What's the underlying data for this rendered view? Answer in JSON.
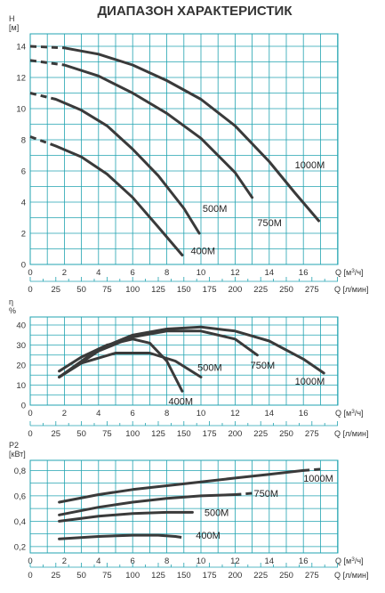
{
  "title": "ДИАПАЗОН ХАРАКТЕРИСТИК",
  "colors": {
    "grid": "#22a3b0",
    "curve": "#3a3a3a",
    "text": "#333333"
  },
  "chart_data": [
    {
      "type": "line",
      "ylabel": "H [м]",
      "xlabel_m3h": "Q [м³/ч]",
      "xlabel_lmin": "Q [л/мин]",
      "xlim": [
        0,
        18
      ],
      "ylim": [
        0,
        14.8
      ],
      "xticks": [
        "0",
        "2",
        "4",
        "6",
        "8",
        "10",
        "12",
        "14",
        "16"
      ],
      "yticks": [
        "0",
        "2",
        "4",
        "6",
        "8",
        "10",
        "12",
        "14"
      ],
      "xticks_lmin": [
        "0",
        "25",
        "50",
        "75",
        "100",
        "125",
        "150",
        "175",
        "200",
        "225",
        "250",
        "275"
      ],
      "series": [
        {
          "name": "400M",
          "dash_to": 1.5,
          "points": [
            [
              0,
              8.2
            ],
            [
              1.5,
              7.6
            ],
            [
              3,
              6.9
            ],
            [
              4.5,
              5.8
            ],
            [
              6,
              4.3
            ],
            [
              7.5,
              2.4
            ],
            [
              8.9,
              0.6
            ]
          ]
        },
        {
          "name": "500M",
          "dash_to": 1.5,
          "points": [
            [
              0,
              11.0
            ],
            [
              1.5,
              10.6
            ],
            [
              3,
              9.9
            ],
            [
              4.5,
              8.9
            ],
            [
              6,
              7.4
            ],
            [
              7.5,
              5.7
            ],
            [
              9,
              3.6
            ],
            [
              9.9,
              2.0
            ]
          ]
        },
        {
          "name": "750M",
          "dash_to": 2.0,
          "points": [
            [
              0,
              13.1
            ],
            [
              2,
              12.8
            ],
            [
              4,
              12.1
            ],
            [
              6,
              11.0
            ],
            [
              8,
              9.7
            ],
            [
              10,
              8.1
            ],
            [
              12,
              5.9
            ],
            [
              13,
              4.3
            ]
          ]
        },
        {
          "name": "1000M",
          "dash_to": 1.0,
          "points": [
            [
              0,
              14.0
            ],
            [
              2,
              13.9
            ],
            [
              4,
              13.5
            ],
            [
              6,
              12.8
            ],
            [
              8,
              11.8
            ],
            [
              10,
              10.6
            ],
            [
              12,
              8.9
            ],
            [
              14,
              6.6
            ],
            [
              15.5,
              4.6
            ],
            [
              16.9,
              2.8
            ]
          ]
        }
      ],
      "labels": [
        {
          "text": "400M",
          "x": 9.4,
          "y": 0.9
        },
        {
          "text": "500M",
          "x": 10.1,
          "y": 3.6
        },
        {
          "text": "750M",
          "x": 13.3,
          "y": 2.7
        },
        {
          "text": "1000M",
          "x": 15.5,
          "y": 6.4
        }
      ]
    },
    {
      "type": "line",
      "ylabel": "η %",
      "xlabel_m3h": "Q [м³/ч]",
      "xlabel_lmin": "Q [л/мин]",
      "xlim": [
        0,
        18
      ],
      "ylim": [
        0,
        44
      ],
      "xticks": [
        "0",
        "2",
        "4",
        "6",
        "8",
        "10",
        "12",
        "14",
        "16"
      ],
      "yticks": [
        "0",
        "10",
        "20",
        "30",
        "40"
      ],
      "xticks_lmin": [
        "0",
        "25",
        "50",
        "75",
        "100",
        "125",
        "150",
        "175",
        "200",
        "225",
        "250",
        "275"
      ],
      "series": [
        {
          "name": "400M",
          "points": [
            [
              1.7,
              17
            ],
            [
              3,
              24
            ],
            [
              4.5,
              30
            ],
            [
              6,
              33
            ],
            [
              7,
              31
            ],
            [
              8,
              22
            ],
            [
              8.9,
              7
            ]
          ]
        },
        {
          "name": "500M",
          "points": [
            [
              1.7,
              14
            ],
            [
              3,
              21
            ],
            [
              5,
              26
            ],
            [
              7,
              26
            ],
            [
              8.5,
              22
            ],
            [
              10,
              14
            ]
          ]
        },
        {
          "name": "750M",
          "points": [
            [
              1.7,
              14
            ],
            [
              4,
              27
            ],
            [
              6,
              34
            ],
            [
              8,
              37
            ],
            [
              10,
              37
            ],
            [
              12,
              33
            ],
            [
              13.3,
              25
            ]
          ]
        },
        {
          "name": "1000M",
          "points": [
            [
              1.7,
              14
            ],
            [
              4,
              28
            ],
            [
              6,
              35
            ],
            [
              8,
              38
            ],
            [
              10,
              39
            ],
            [
              12,
              37
            ],
            [
              14,
              32
            ],
            [
              16,
              23
            ],
            [
              17.2,
              16
            ]
          ]
        }
      ],
      "labels": [
        {
          "text": "400M",
          "x": 8.1,
          "y": 2
        },
        {
          "text": "500M",
          "x": 9.8,
          "y": 19
        },
        {
          "text": "750M",
          "x": 12.9,
          "y": 20
        },
        {
          "text": "1000M",
          "x": 15.5,
          "y": 12
        }
      ]
    },
    {
      "type": "line",
      "ylabel": "P2 [кВт]",
      "xlabel_m3h": "Q [м³/ч]",
      "xlabel_lmin": "Q [л/мин]",
      "xlim": [
        0,
        18
      ],
      "ylim": [
        0.15,
        0.88
      ],
      "xticks": [
        "0",
        "2",
        "4",
        "6",
        "8",
        "10",
        "12",
        "14",
        "16"
      ],
      "yticks": [
        "0,2",
        "0,4",
        "0,6",
        "0,8"
      ],
      "xticks_lmin": [
        "0",
        "25",
        "50",
        "75",
        "100",
        "125",
        "150",
        "175",
        "200",
        "225",
        "250",
        "275"
      ],
      "series": [
        {
          "name": "400M",
          "dash_from": 8.0,
          "points": [
            [
              1.7,
              0.26
            ],
            [
              4,
              0.28
            ],
            [
              6,
              0.29
            ],
            [
              7.5,
              0.29
            ],
            [
              8.5,
              0.28
            ],
            [
              9,
              0.27
            ]
          ]
        },
        {
          "name": "500M",
          "dash_from": 8.5,
          "points": [
            [
              1.7,
              0.4
            ],
            [
              4,
              0.44
            ],
            [
              6,
              0.46
            ],
            [
              8,
              0.47
            ],
            [
              9.5,
              0.47
            ]
          ]
        },
        {
          "name": "750M",
          "dash_from": 12.0,
          "points": [
            [
              1.7,
              0.45
            ],
            [
              4,
              0.51
            ],
            [
              6,
              0.55
            ],
            [
              8,
              0.58
            ],
            [
              10,
              0.6
            ],
            [
              12,
              0.61
            ],
            [
              13,
              0.62
            ]
          ]
        },
        {
          "name": "1000M",
          "dash_from": 16.0,
          "points": [
            [
              1.7,
              0.55
            ],
            [
              4,
              0.61
            ],
            [
              6,
              0.65
            ],
            [
              8,
              0.68
            ],
            [
              10,
              0.71
            ],
            [
              12,
              0.74
            ],
            [
              14,
              0.77
            ],
            [
              16,
              0.8
            ],
            [
              17,
              0.81
            ]
          ]
        }
      ],
      "labels": [
        {
          "text": "400M",
          "x": 9.7,
          "y": 0.29
        },
        {
          "text": "500M",
          "x": 10.2,
          "y": 0.47
        },
        {
          "text": "750M",
          "x": 13.1,
          "y": 0.62
        },
        {
          "text": "1000M",
          "x": 16.0,
          "y": 0.74
        }
      ]
    }
  ]
}
